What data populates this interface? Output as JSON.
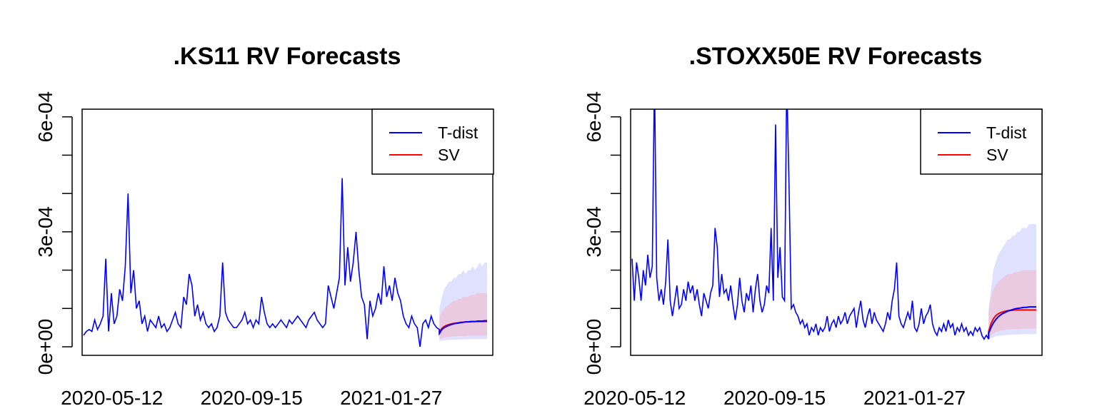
{
  "chart_data": [
    {
      "type": "line",
      "title": ".KS11 RV Forecasts",
      "xlabel": "",
      "ylabel": "",
      "x_tick_labels": [
        "2020-05-12",
        "2020-09-15",
        "2021-01-27"
      ],
      "y_tick_labels": [
        "0e+00",
        "3e-04",
        "6e-04"
      ],
      "ylim": [
        0,
        0.00062
      ],
      "legend": {
        "position": "top-right",
        "entries": [
          "T-dist",
          "SV"
        ]
      },
      "colors": {
        "tdist": "#0000ff",
        "sv": "#ff0000",
        "band_tdist": "#ccccff",
        "band_sv": "#f2b8c6"
      },
      "history": [
        3e-05,
        4e-05,
        4.5e-05,
        4e-05,
        7e-05,
        4.5e-05,
        6e-05,
        8e-05,
        0.00023,
        4e-05,
        0.00014,
        6e-05,
        8e-05,
        0.00015,
        0.00012,
        0.00021,
        0.0004,
        0.00014,
        0.0002,
        0.0001,
        0.00012,
        6e-05,
        8e-05,
        4e-05,
        7e-05,
        6e-05,
        5e-05,
        8e-05,
        5e-05,
        6e-05,
        4e-05,
        5e-05,
        7e-05,
        9e-05,
        6e-05,
        5e-05,
        0.00013,
        0.00011,
        0.00019,
        0.00016,
        8e-05,
        0.00011,
        7e-05,
        9e-05,
        6e-05,
        5e-05,
        6e-05,
        4e-05,
        5e-05,
        8e-05,
        0.00022,
        9e-05,
        7e-05,
        6e-05,
        5e-05,
        5e-05,
        6e-05,
        7e-05,
        9e-05,
        6e-05,
        7e-05,
        5e-05,
        7e-05,
        6e-05,
        0.00013,
        9e-05,
        6e-05,
        5e-05,
        6e-05,
        5e-05,
        6e-05,
        7e-05,
        6e-05,
        5e-05,
        7e-05,
        6e-05,
        7e-05,
        8e-05,
        7e-05,
        6e-05,
        5e-05,
        7e-05,
        8e-05,
        9e-05,
        7e-05,
        6e-05,
        5e-05,
        6e-05,
        0.00016,
        0.00013,
        0.0001,
        0.00014,
        0.00018,
        0.00044,
        0.00016,
        0.00026,
        0.00017,
        0.00022,
        0.0003,
        0.0002,
        0.00013,
        0.00011,
        2e-05,
        0.00012,
        8e-05,
        0.0001,
        0.00014,
        0.00011,
        0.00021,
        0.00013,
        0.00016,
        0.00012,
        0.00018,
        0.00014,
        0.00012,
        8e-05,
        6e-05,
        5e-05,
        8e-05,
        6e-05,
        5e-05,
        0.0,
        6e-05,
        7e-05,
        5e-05,
        8e-05,
        6e-05,
        5e-05,
        4.5e-05
      ],
      "forecast_tdist": [
        3.5e-05,
        4.5e-05,
        5e-05,
        5.3e-05,
        5.6e-05,
        5.8e-05,
        6e-05,
        6.1e-05,
        6.2e-05,
        6.3e-05,
        6.4e-05,
        6.5e-05,
        6.5e-05,
        6.6e-05,
        6.6e-05,
        6.6e-05,
        6.7e-05,
        6.7e-05,
        6.7e-05,
        6.8e-05,
        6.8e-05
      ],
      "forecast_sv": [
        3.8e-05,
        4.8e-05,
        5.3e-05,
        5.6e-05,
        5.8e-05,
        6e-05,
        6.1e-05,
        6.2e-05,
        6.3e-05,
        6.4e-05,
        6.4e-05,
        6.5e-05,
        6.5e-05,
        6.5e-05,
        6.6e-05,
        6.6e-05,
        6.6e-05,
        6.6e-05,
        6.6e-05,
        6.6e-05,
        6.6e-05
      ],
      "band_tdist_upper": [
        0.0001,
        0.00013,
        0.00015,
        0.00016,
        0.00017,
        0.00017,
        0.00018,
        0.00018,
        0.00019,
        0.00019,
        0.0002,
        0.00019,
        0.0002,
        0.0002,
        0.00021,
        0.0002,
        0.00021,
        0.00022,
        0.00021,
        0.00022,
        0.00022
      ],
      "band_tdist_lower": [
        1.6e-05,
        1.6e-05,
        1.7e-05,
        1.7e-05,
        1.8e-05,
        1.8e-05,
        1.8e-05,
        1.8e-05,
        1.9e-05,
        1.9e-05,
        1.9e-05,
        1.9e-05,
        1.9e-05,
        2e-05,
        2e-05,
        2e-05,
        2e-05,
        2e-05,
        2e-05,
        2e-05,
        2e-05
      ],
      "band_sv_upper": [
        8e-05,
        9e-05,
        0.0001,
        0.000105,
        0.00011,
        0.000115,
        0.00012,
        0.00012,
        0.000125,
        0.000125,
        0.00013,
        0.00013,
        0.00013,
        0.000135,
        0.000135,
        0.000135,
        0.00014,
        0.00014,
        0.00014,
        0.00014,
        0.00014
      ],
      "band_sv_lower": [
        2e-05,
        2.2e-05,
        2.4e-05,
        2.5e-05,
        2.6e-05,
        2.6e-05,
        2.7e-05,
        2.7e-05,
        2.8e-05,
        2.8e-05,
        2.8e-05,
        2.8e-05,
        2.9e-05,
        2.9e-05,
        2.9e-05,
        2.9e-05,
        2.9e-05,
        2.9e-05,
        2.9e-05,
        2.9e-05,
        2.9e-05
      ]
    },
    {
      "type": "line",
      "title": ".STOXX50E RV Forecasts",
      "xlabel": "",
      "ylabel": "",
      "x_tick_labels": [
        "2020-05-12",
        "2020-09-15",
        "2021-01-27"
      ],
      "y_tick_labels": [
        "0e+00",
        "3e-04",
        "6e-04"
      ],
      "ylim": [
        0,
        0.00062
      ],
      "legend": {
        "position": "top-right",
        "entries": [
          "T-dist",
          "SV"
        ]
      },
      "colors": {
        "tdist": "#0000ff",
        "sv": "#ff0000",
        "band_tdist": "#ccccff",
        "band_sv": "#f2b8c6"
      },
      "history": [
        0.00023,
        0.00012,
        0.00022,
        0.00018,
        0.00012,
        0.0002,
        0.00016,
        0.00024,
        0.00018,
        0.00021,
        0.00071,
        0.00018,
        0.00012,
        0.00015,
        0.00011,
        0.00017,
        0.00028,
        0.00012,
        8e-05,
        0.00012,
        0.00016,
        0.0001,
        0.00011,
        0.00015,
        0.00012,
        0.00017,
        0.00014,
        0.00016,
        0.00012,
        0.00015,
        0.00011,
        8e-05,
        0.00014,
        0.00012,
        0.0001,
        0.00014,
        0.00016,
        0.00031,
        0.00026,
        0.00013,
        0.00019,
        0.00014,
        0.00015,
        0.00012,
        0.00016,
        0.00011,
        7e-05,
        0.00011,
        0.00018,
        0.00012,
        9e-05,
        0.00014,
        0.00012,
        0.00016,
        9e-05,
        0.00015,
        0.00019,
        0.00012,
        9e-05,
        0.00011,
        0.00016,
        0.00014,
        0.00031,
        0.00012,
        0.00058,
        0.00018,
        0.00026,
        0.00013,
        0.00012,
        0.0007,
        0.00042,
        0.0001,
        0.00011,
        9e-05,
        8e-05,
        6e-05,
        7e-05,
        5e-05,
        6e-05,
        3e-05,
        5e-05,
        4e-05,
        6e-05,
        3e-05,
        5e-05,
        4e-05,
        5e-05,
        8e-05,
        4e-05,
        6e-05,
        7e-05,
        5e-05,
        8e-05,
        6e-05,
        7e-05,
        9e-05,
        6e-05,
        8e-05,
        9e-05,
        0.0001,
        5e-05,
        9e-05,
        0.00012,
        7e-05,
        5e-05,
        8e-05,
        0.0001,
        6e-05,
        9e-05,
        7e-05,
        6e-05,
        5e-05,
        4e-05,
        6e-05,
        9e-05,
        7e-05,
        0.00012,
        0.00015,
        0.00022,
        8e-05,
        6e-05,
        5e-05,
        7e-05,
        9e-05,
        7e-05,
        0.00012,
        5e-05,
        4e-05,
        6e-05,
        0.0001,
        6e-05,
        8e-05,
        9e-05,
        0.00011,
        6e-05,
        4e-05,
        3e-05,
        5e-05,
        4e-05,
        6e-05,
        4e-05,
        7e-05,
        5e-05,
        6e-05,
        3e-05,
        5e-05,
        4e-05,
        6e-05,
        4e-05,
        5e-05,
        3e-05,
        4e-05,
        3e-05,
        5e-05,
        4e-05,
        5e-05,
        3e-05,
        2e-05,
        3e-05,
        2e-05
      ],
      "forecast_tdist": [
        3.5e-05,
        5e-05,
        6.2e-05,
        7.1e-05,
        7.8e-05,
        8.3e-05,
        8.7e-05,
        9e-05,
        9.3e-05,
        9.5e-05,
        9.7e-05,
        9.9e-05,
        0.0001,
        0.000101,
        0.000102,
        0.000103,
        0.000103,
        0.000104,
        0.000104,
        0.000104,
        0.000104
      ],
      "forecast_sv": [
        4e-05,
        6e-05,
        7.3e-05,
        8.1e-05,
        8.6e-05,
        8.9e-05,
        9.1e-05,
        9.3e-05,
        9.4e-05,
        9.5e-05,
        9.5e-05,
        9.6e-05,
        9.6e-05,
        9.6e-05,
        9.6e-05,
        9.6e-05,
        9.6e-05,
        9.6e-05,
        9.6e-05,
        9.6e-05,
        9.6e-05
      ],
      "band_tdist_upper": [
        0.0001,
        0.00015,
        0.0002,
        0.00022,
        0.00024,
        0.00025,
        0.00026,
        0.00027,
        0.00028,
        0.00028,
        0.00029,
        0.00029,
        0.0003,
        0.0003,
        0.00031,
        0.00031,
        0.00031,
        0.00032,
        0.00032,
        0.00032,
        0.00032
      ],
      "band_tdist_lower": [
        2e-05,
        2.3e-05,
        2.5e-05,
        2.7e-05,
        2.8e-05,
        2.9e-05,
        3e-05,
        3e-05,
        3.1e-05,
        3.1e-05,
        3.2e-05,
        3.2e-05,
        3.2e-05,
        3.2e-05,
        3.3e-05,
        3.3e-05,
        3.3e-05,
        3.3e-05,
        3.3e-05,
        3.3e-05,
        3.3e-05
      ],
      "band_sv_upper": [
        9e-05,
        0.00013,
        0.00015,
        0.00016,
        0.00017,
        0.000175,
        0.00018,
        0.000185,
        0.00019,
        0.00019,
        0.00019,
        0.000195,
        0.000195,
        0.000195,
        0.0002,
        0.0002,
        0.0002,
        0.0002,
        0.0002,
        0.0002,
        0.0002
      ],
      "band_sv_lower": [
        2.5e-05,
        3e-05,
        3.5e-05,
        3.8e-05,
        4e-05,
        4.2e-05,
        4.3e-05,
        4.4e-05,
        4.5e-05,
        4.5e-05,
        4.6e-05,
        4.6e-05,
        4.6e-05,
        4.6e-05,
        4.7e-05,
        4.7e-05,
        4.7e-05,
        4.7e-05,
        4.7e-05,
        4.7e-05,
        4.7e-05
      ]
    }
  ]
}
